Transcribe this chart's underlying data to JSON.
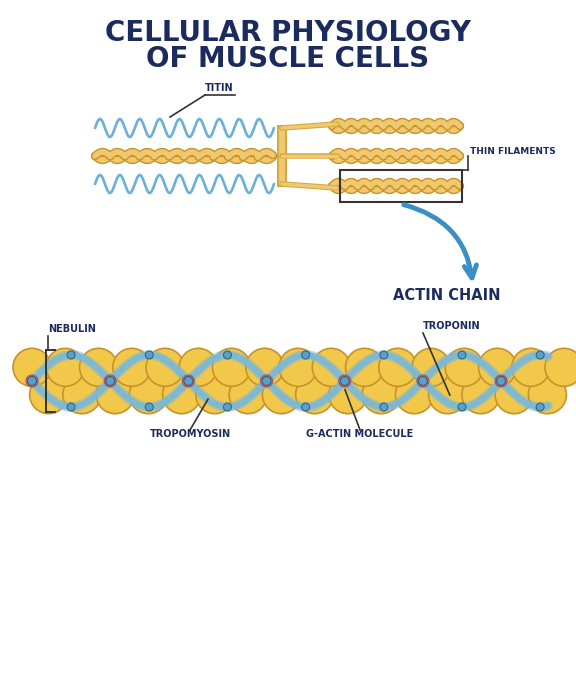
{
  "title_line1": "CELLULAR PHYSIOLOGY",
  "title_line2": "OF MUSCLE CELLS",
  "title_color": "#1c2b5e",
  "title_fontsize": 20,
  "bg_color": "#ffffff",
  "label_titin": "TITIN",
  "label_thin_filaments": "THIN FILAMENTS",
  "label_actin_chain": "ACTIN CHAIN",
  "label_nebulin": "NEBULIN",
  "label_troponin": "TROPONIN",
  "label_tropomyosin": "TROPOMYOSIN",
  "label_g_actin": "G-ACTIN MOLECULE",
  "wave_color": "#6ab0d8",
  "filament_fill": "#f0c96e",
  "filament_edge": "#c8922a",
  "titin_rod_color": "#d4a843",
  "titin_rod_fill": "#f0c96e",
  "arrow_color": "#3b8fc4",
  "label_font_color": "#1c2b5e",
  "label_fontsize": 7.5,
  "actin_ball_fill": "#f2c84b",
  "actin_ball_edge": "#c8922a",
  "tropomyosin_color": "#7ab8d9",
  "troponin_pink": "#e87070",
  "troponin_blue": "#5b9fc8",
  "line_color": "#333333"
}
